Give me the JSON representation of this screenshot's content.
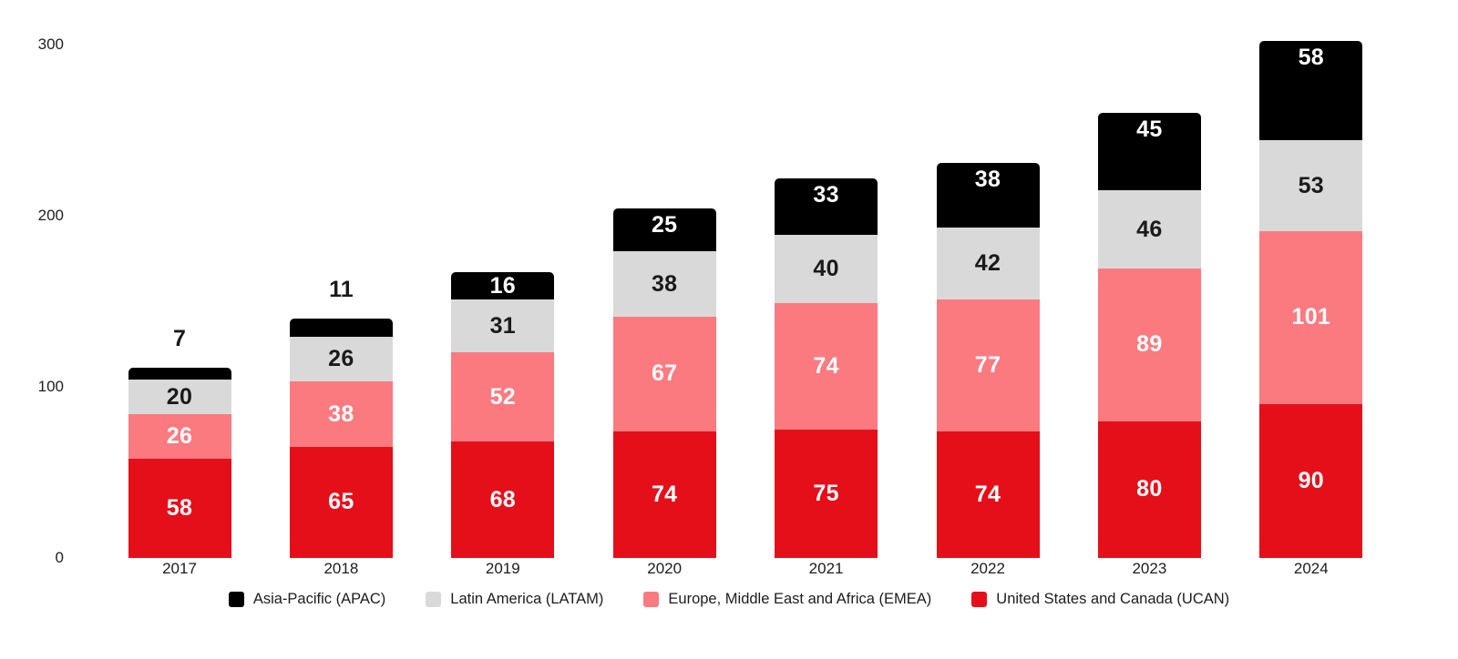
{
  "chart_data": {
    "type": "bar",
    "variant": "stacked-vertical",
    "title": "",
    "xlabel": "",
    "ylabel": "",
    "categories": [
      "2017",
      "2018",
      "2019",
      "2020",
      "2021",
      "2022",
      "2023",
      "2024"
    ],
    "series": [
      {
        "key": "ucan",
        "name": "United States and Canada (UCAN)",
        "color": "#e50f1a",
        "label_color": "#ffffff",
        "values": [
          58,
          65,
          68,
          74,
          75,
          74,
          80,
          90
        ]
      },
      {
        "key": "emea",
        "name": "Europe, Middle East and Africa (EMEA)",
        "color": "#fb7a80",
        "label_color": "#ffffff",
        "values": [
          26,
          38,
          52,
          67,
          74,
          77,
          89,
          101
        ]
      },
      {
        "key": "latam",
        "name": "Latin America (LATAM)",
        "color": "#d9d9d9",
        "label_color": "#1a1a1a",
        "values": [
          20,
          26,
          31,
          38,
          40,
          42,
          46,
          53
        ]
      },
      {
        "key": "apac",
        "name": "Asia-Pacific (APAC)",
        "color": "#000000",
        "label_color": "#ffffff",
        "values": [
          7,
          11,
          16,
          25,
          33,
          38,
          45,
          58
        ]
      }
    ],
    "totals": [
      111,
      140,
      167,
      204,
      222,
      231,
      260,
      302
    ],
    "y_ticks": [
      0,
      100,
      200,
      300
    ],
    "ylim": [
      0,
      300
    ],
    "grid": false,
    "axis_lines": false,
    "data_labels": "shown-on-every-segment",
    "outside_labels": [
      {
        "category": "2017",
        "series": "apac",
        "value": 7
      },
      {
        "category": "2018",
        "series": "apac",
        "value": 11
      }
    ],
    "legend_position": "bottom",
    "legend": [
      {
        "label": "Asia-Pacific (APAC)",
        "color": "#000000"
      },
      {
        "label": "Latin America (LATAM)",
        "color": "#d9d9d9"
      },
      {
        "label": "Europe, Middle East and Africa (EMEA)",
        "color": "#fb7a80"
      },
      {
        "label": "United States and Canada (UCAN)",
        "color": "#e50f1a"
      }
    ]
  },
  "colors": {
    "background": "#ffffff",
    "axis_text": "#1f1f1f",
    "category_text": "#1c1c1e",
    "legend_text": "#1c1c1c",
    "outside_label_text": "#1a1a1a"
  }
}
